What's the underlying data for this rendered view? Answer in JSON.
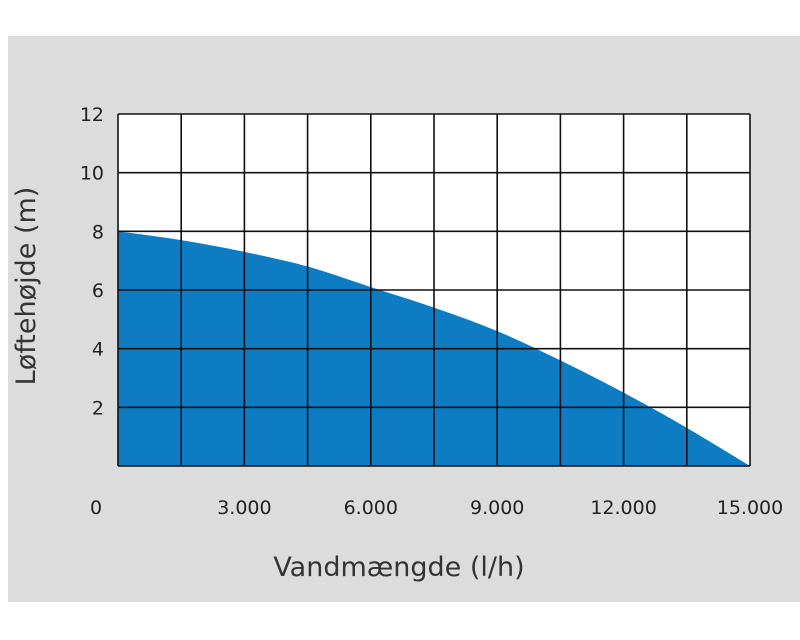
{
  "chart_data": {
    "type": "area",
    "title": "",
    "xlabel": "Vandmængde (l/h)",
    "ylabel": "Løftehøjde (m)",
    "xlim": [
      0,
      15000
    ],
    "ylim": [
      0,
      12
    ],
    "x_ticks": [
      {
        "value": 0,
        "label": "0"
      },
      {
        "value": 3000,
        "label": "3.000"
      },
      {
        "value": 6000,
        "label": "6.000"
      },
      {
        "value": 9000,
        "label": "9.000"
      },
      {
        "value": 12000,
        "label": "12.000"
      },
      {
        "value": 15000,
        "label": "15.000"
      }
    ],
    "y_ticks": [
      {
        "value": 2,
        "label": "2"
      },
      {
        "value": 4,
        "label": "4"
      },
      {
        "value": 6,
        "label": "6"
      },
      {
        "value": 8,
        "label": "8"
      },
      {
        "value": 10,
        "label": "10"
      },
      {
        "value": 12,
        "label": "12"
      }
    ],
    "grid": true,
    "grid_columns": 10,
    "grid_rows": 6,
    "fill_color": "#0d7cc3",
    "series": [
      {
        "x": [
          0,
          1500,
          3000,
          4500,
          6000,
          7500,
          9000,
          10500,
          12000,
          13500,
          15000
        ],
        "values": [
          8.0,
          7.7,
          7.3,
          6.8,
          6.1,
          5.4,
          4.6,
          3.6,
          2.5,
          1.3,
          0.0
        ]
      }
    ]
  }
}
